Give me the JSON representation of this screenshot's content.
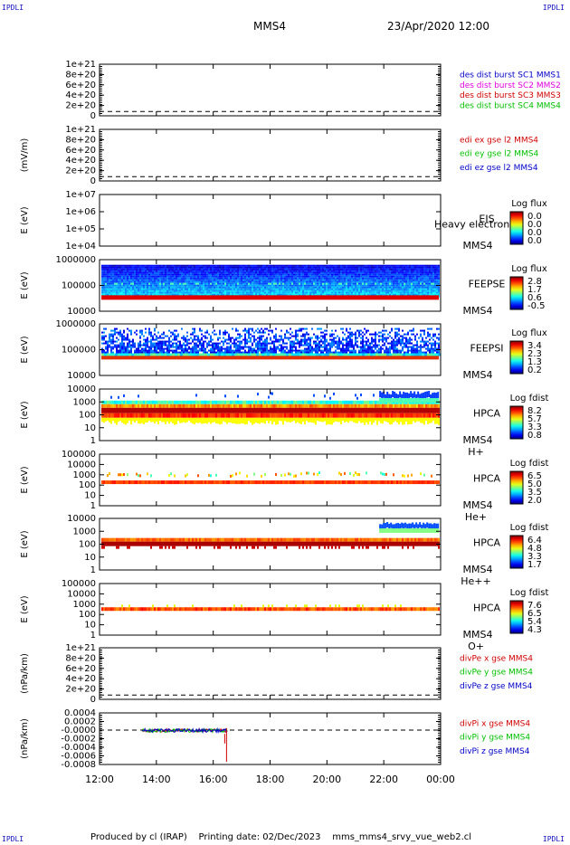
{
  "corners": {
    "tl": "IPDLI",
    "tr": "IPDLI",
    "bl": "IPDLI",
    "br": "IPDLI"
  },
  "header": {
    "spacecraft": "MMS4",
    "date": "23/Apr/2020 12:00"
  },
  "footer": {
    "text": "Produced by cl (IRAP)    Printing date: 02/Dec/2023    mms_mms4_srvy_vue_web2.cl"
  },
  "colors": {
    "blue": "#0000c8",
    "magenta": "#e000e0",
    "red": "#d00000",
    "green": "#00c000",
    "navy": "#1010a0"
  },
  "chart_data": [
    {
      "type": "line",
      "yticks": [
        "1e+21",
        "8e+20",
        "6e+20",
        "4e+20",
        "2e+20",
        "0"
      ],
      "ylim": [
        -1e+20,
        1.1e+21
      ],
      "ylabel": "",
      "legend": [
        {
          "text": "des dist burst SC1 MMS1",
          "color": "#0000c8"
        },
        {
          "text": "des dist burst SC2 MMS2",
          "color": "#e000e0"
        },
        {
          "text": "des dist burst SC3 MMS3",
          "color": "#d00000"
        },
        {
          "text": "des dist burst SC4 MMS4",
          "color": "#00c000"
        }
      ]
    },
    {
      "type": "line",
      "yticks": [
        "1e+21",
        "8e+20",
        "6e+20",
        "4e+20",
        "2e+20",
        "0"
      ],
      "ylim": [
        -1e+20,
        1.1e+21
      ],
      "ylabel": "(mV/m)",
      "legend": [
        {
          "text": "edi ex gse l2 MMS4",
          "color": "#d00000"
        },
        {
          "text": "edi ey gse l2 MMS4",
          "color": "#00c000"
        },
        {
          "text": "edi ez gse l2 MMS4",
          "color": "#0000c8"
        }
      ]
    },
    {
      "type": "heatmap",
      "yticks": [
        "1e+07",
        "1e+06",
        "1e+05",
        "1e+04"
      ],
      "ylabel": "E (eV)",
      "instrument": [
        "EIS",
        "MMS4"
      ],
      "note": "Heavy electron to",
      "colorbar": {
        "title": "Log flux",
        "ticks": [
          "0.0",
          "0.0",
          "0.0",
          "0.0"
        ]
      }
    },
    {
      "type": "heatmap",
      "yticks": [
        "1000000",
        "100000",
        "10000"
      ],
      "ylabel": "E (eV)",
      "instrument": [
        "FEEPSE",
        "MMS4"
      ],
      "colorbar": {
        "title": "Log flux",
        "ticks": [
          "2.8",
          "1.7",
          "0.6",
          "-0.5"
        ]
      }
    },
    {
      "type": "heatmap",
      "yticks": [
        "1000000",
        "100000",
        "10000"
      ],
      "ylabel": "E (eV)",
      "instrument": [
        "FEEPSI",
        "MMS4"
      ],
      "colorbar": {
        "title": "Log flux",
        "ticks": [
          "3.4",
          "2.3",
          "1.3",
          "0.2"
        ]
      }
    },
    {
      "type": "heatmap",
      "yticks": [
        "10000",
        "1000",
        "100",
        "10",
        "1"
      ],
      "ylabel": "E (eV)",
      "instrument": [
        "HPCA",
        "MMS4"
      ],
      "species": "H+",
      "colorbar": {
        "title": "Log fdist",
        "ticks": [
          "8.2",
          "5.7",
          "3.3",
          "0.8"
        ]
      }
    },
    {
      "type": "heatmap",
      "yticks": [
        "100000",
        "10000",
        "1000",
        "100",
        "10",
        "1"
      ],
      "ylabel": "E (eV)",
      "instrument": [
        "HPCA",
        "MMS4"
      ],
      "species": "He+",
      "colorbar": {
        "title": "Log fdist",
        "ticks": [
          "6.5",
          "5.0",
          "3.5",
          "2.0"
        ]
      }
    },
    {
      "type": "heatmap",
      "yticks": [
        "10000",
        "1000",
        "100",
        "10",
        "1"
      ],
      "ylabel": "E (eV)",
      "instrument": [
        "HPCA",
        "MMS4"
      ],
      "species": "He++",
      "colorbar": {
        "title": "Log fdist",
        "ticks": [
          "6.4",
          "4.8",
          "3.3",
          "1.7"
        ]
      }
    },
    {
      "type": "heatmap",
      "yticks": [
        "100000",
        "10000",
        "1000",
        "100",
        "10",
        "1"
      ],
      "ylabel": "E (eV)",
      "instrument": [
        "HPCA",
        "MMS4"
      ],
      "species": "O+",
      "colorbar": {
        "title": "Log fdist",
        "ticks": [
          "7.6",
          "6.5",
          "5.4",
          "4.3"
        ]
      }
    },
    {
      "type": "line",
      "yticks": [
        "1e+21",
        "8e+20",
        "6e+20",
        "4e+20",
        "2e+20",
        "0"
      ],
      "ylim": [
        -1e+20,
        1.1e+21
      ],
      "ylabel": "(nPa/km)",
      "legend": [
        {
          "text": "divPe x gse MMS4",
          "color": "#d00000"
        },
        {
          "text": "divPe y gse MMS4",
          "color": "#00c000"
        },
        {
          "text": "divPe z gse MMS4",
          "color": "#0000c8"
        }
      ]
    },
    {
      "type": "line",
      "yticks": [
        "0.0004",
        "0.0002",
        "-0.0000",
        "-0.0002",
        "-0.0004",
        "-0.0006",
        "-0.0008"
      ],
      "ylim": [
        -0.0009,
        0.00045
      ],
      "ylabel": "(nPa/km)",
      "data_span": [
        "13:30",
        "16:30"
      ],
      "legend": [
        {
          "text": "divPi x gse MMS4",
          "color": "#d00000"
        },
        {
          "text": "divPi y gse MMS4",
          "color": "#00c000"
        },
        {
          "text": "divPi z gse MMS4",
          "color": "#0000c8"
        }
      ]
    }
  ],
  "xaxis": {
    "ticks": [
      "12:00",
      "14:00",
      "16:00",
      "18:00",
      "20:00",
      "22:00",
      "00:00"
    ]
  }
}
